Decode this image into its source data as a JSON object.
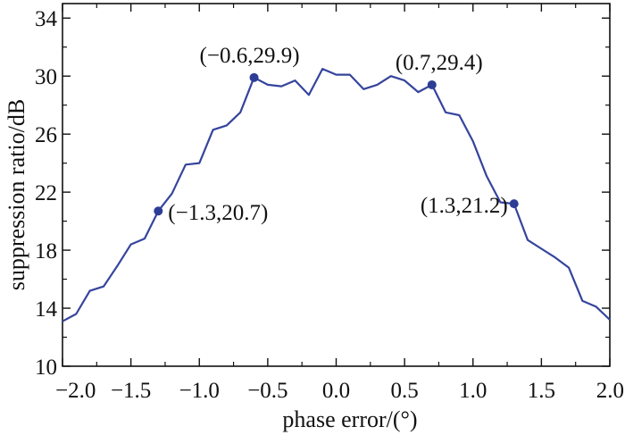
{
  "chart_data": {
    "type": "line",
    "title": "",
    "xlabel": "phase error/(°)",
    "ylabel": "suppression ratio/dB",
    "xlim": [
      -2.0,
      2.0
    ],
    "ylim": [
      10,
      35
    ],
    "xticks": [
      "−2.0",
      "−1.5",
      "−1.0",
      "−0.5",
      "0.0",
      "0.5",
      "1.0",
      "1.5",
      "2.0"
    ],
    "yticks": [
      "10",
      "14",
      "18",
      "22",
      "26",
      "30",
      "34"
    ],
    "grid": false,
    "legend": "none",
    "colors": {
      "line": "#35449c",
      "marker": "#2d3d96",
      "axis": "#111111"
    },
    "series": [
      {
        "x": [
          -2.0,
          -1.9,
          -1.8,
          -1.7,
          -1.6,
          -1.5,
          -1.4,
          -1.3,
          -1.2,
          -1.1,
          -1.0,
          -0.9,
          -0.8,
          -0.7,
          -0.6,
          -0.5,
          -0.4,
          -0.3,
          -0.2,
          -0.1,
          0.0,
          0.1,
          0.2,
          0.3,
          0.4,
          0.5,
          0.6,
          0.7,
          0.8,
          0.9,
          1.0,
          1.1,
          1.2,
          1.3,
          1.4,
          1.5,
          1.6,
          1.7,
          1.8,
          1.9,
          2.0
        ],
        "y": [
          13.1,
          13.6,
          15.2,
          15.5,
          16.9,
          18.4,
          18.8,
          20.7,
          21.9,
          23.9,
          24.0,
          26.3,
          26.6,
          27.5,
          29.9,
          29.4,
          29.3,
          29.7,
          28.7,
          30.5,
          30.1,
          30.1,
          29.1,
          29.4,
          30.0,
          29.7,
          28.9,
          29.4,
          27.5,
          27.3,
          25.5,
          23.1,
          21.3,
          21.2,
          18.7,
          18.1,
          17.5,
          16.8,
          14.5,
          14.1,
          13.2
        ]
      }
    ],
    "highlights": [
      {
        "x": -1.3,
        "y": 20.7,
        "label": "(−1.3,20.7)"
      },
      {
        "x": -0.6,
        "y": 29.9,
        "label": "(−0.6,29.9)"
      },
      {
        "x": 0.7,
        "y": 29.4,
        "label": "(0.7,29.4)"
      },
      {
        "x": 1.3,
        "y": 21.2,
        "label": "(1.3,21.2)"
      }
    ]
  }
}
